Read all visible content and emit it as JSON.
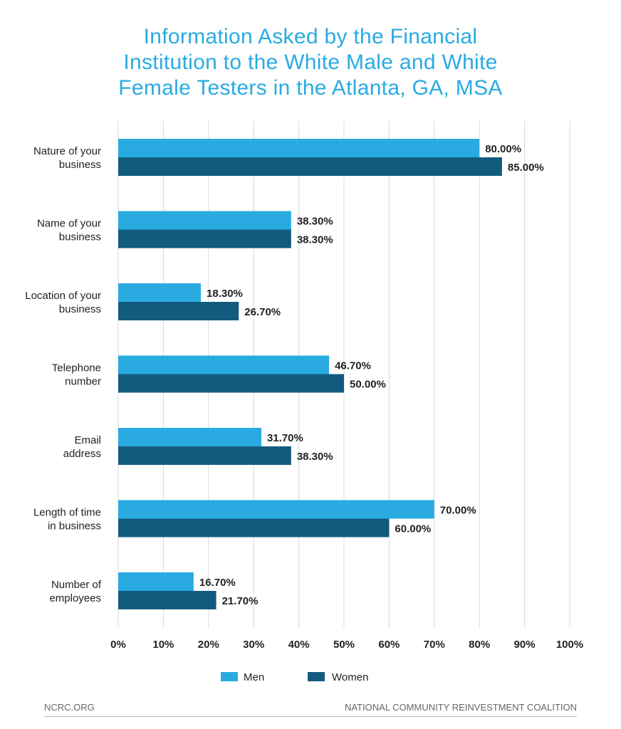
{
  "title_lines": [
    "Information Asked by the Financial",
    "Institution to the White Male and White",
    "Female Testers in the Atlanta, GA, MSA"
  ],
  "colors": {
    "title": "#29abe2",
    "men": "#29abe2",
    "women": "#135b7e",
    "grid": "#d9d9d9"
  },
  "footer": {
    "left": "NCRC.ORG",
    "right": "NATIONAL COMMUNITY REINVESTMENT COALITION"
  },
  "chart_data": {
    "type": "bar",
    "orientation": "horizontal",
    "categories": [
      [
        "Nature of your",
        "business"
      ],
      [
        "Name of your",
        "business"
      ],
      [
        "Location of your",
        "business"
      ],
      [
        "Telephone",
        "number"
      ],
      [
        "Email",
        "address"
      ],
      [
        "Length of time",
        "in business"
      ],
      [
        "Number of",
        "employees"
      ]
    ],
    "series": [
      {
        "name": "Men",
        "values": [
          80.0,
          38.3,
          18.3,
          46.7,
          31.7,
          70.0,
          16.7
        ],
        "labels": [
          "80.00%",
          "38.30%",
          "18.30%",
          "46.70%",
          "31.70%",
          "70.00%",
          "16.70%"
        ]
      },
      {
        "name": "Women",
        "values": [
          85.0,
          38.3,
          26.7,
          50.0,
          38.3,
          60.0,
          21.7
        ],
        "labels": [
          "85.00%",
          "38.30%",
          "26.70%",
          "50.00%",
          "38.30%",
          "60.00%",
          "21.70%"
        ]
      }
    ],
    "xlim": [
      0,
      100
    ],
    "xticks": [
      "0%",
      "10%",
      "20%",
      "30%",
      "40%",
      "50%",
      "60%",
      "70%",
      "80%",
      "90%",
      "100%"
    ],
    "grid": true,
    "legend": "bottom"
  }
}
